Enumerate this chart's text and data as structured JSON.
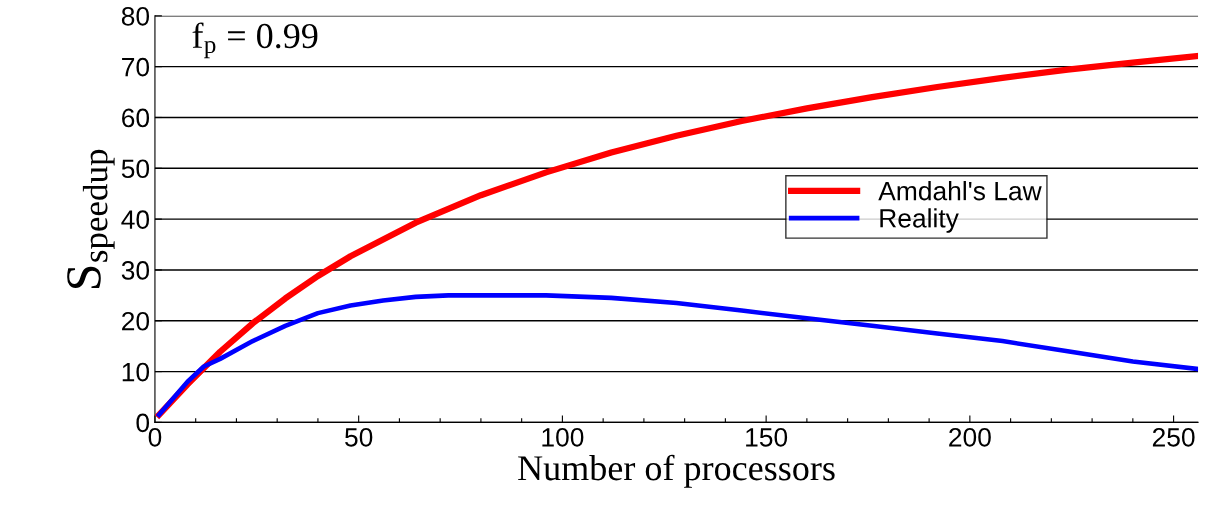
{
  "chart_data": {
    "type": "line",
    "xlabel": "Number of processors",
    "ylabel": "S$_{speedup}$",
    "annotations": [
      "f$_{p}$ = 0.99"
    ],
    "xlim": [
      0,
      256
    ],
    "ylim": [
      0,
      80
    ],
    "xticks": [
      0,
      {
        "value": 10,
        "label": null
      },
      {
        "value": 20,
        "label": null
      },
      {
        "value": 30,
        "label": null
      },
      {
        "value": 40,
        "label": null
      },
      50,
      {
        "value": 60,
        "label": null
      },
      {
        "value": 70,
        "label": null
      },
      {
        "value": 80,
        "label": null
      },
      {
        "value": 90,
        "label": null
      },
      100,
      {
        "value": 110,
        "label": null
      },
      {
        "value": 120,
        "label": null
      },
      {
        "value": 130,
        "label": null
      },
      {
        "value": 140,
        "label": null
      },
      150,
      {
        "value": 160,
        "label": null
      },
      {
        "value": 170,
        "label": null
      },
      {
        "value": 180,
        "label": null
      },
      {
        "value": 190,
        "label": null
      },
      200,
      {
        "value": 210,
        "label": null
      },
      {
        "value": 220,
        "label": null
      },
      {
        "value": 230,
        "label": null
      },
      {
        "value": 240,
        "label": null
      },
      250
    ],
    "yticks": [
      0,
      10,
      20,
      30,
      40,
      50,
      60,
      70,
      80
    ],
    "grid": "y",
    "legend": "center right",
    "marker": "none",
    "line_style": "solid",
    "series": [
      {
        "name": "Amdahl's Law",
        "color": "#ff0000",
        "x": [
          1,
          8,
          16,
          24,
          32,
          40,
          48,
          64,
          80,
          96,
          112,
          128,
          144,
          160,
          176,
          192,
          208,
          224,
          240,
          256
        ],
        "values": [
          1.5,
          7.5,
          13.9,
          19.5,
          24.4,
          28.8,
          32.7,
          39.3,
          44.7,
          49.2,
          53.1,
          56.4,
          59.3,
          61.8,
          64.0,
          66.0,
          67.8,
          69.4,
          70.8,
          72.1
        ]
      },
      {
        "name": "Reality",
        "color": "#0000ff",
        "x": [
          1,
          8,
          12,
          16,
          24,
          32,
          40,
          48,
          56,
          64,
          72,
          96,
          112,
          128,
          144,
          160,
          176,
          192,
          208,
          224,
          240,
          256
        ],
        "values": [
          1.5,
          8,
          11,
          12.5,
          16,
          19,
          21.5,
          23,
          24,
          24.7,
          25,
          25,
          24.5,
          23.5,
          22,
          20.5,
          19,
          17.5,
          16,
          14,
          12,
          10.5
        ]
      }
    ]
  }
}
